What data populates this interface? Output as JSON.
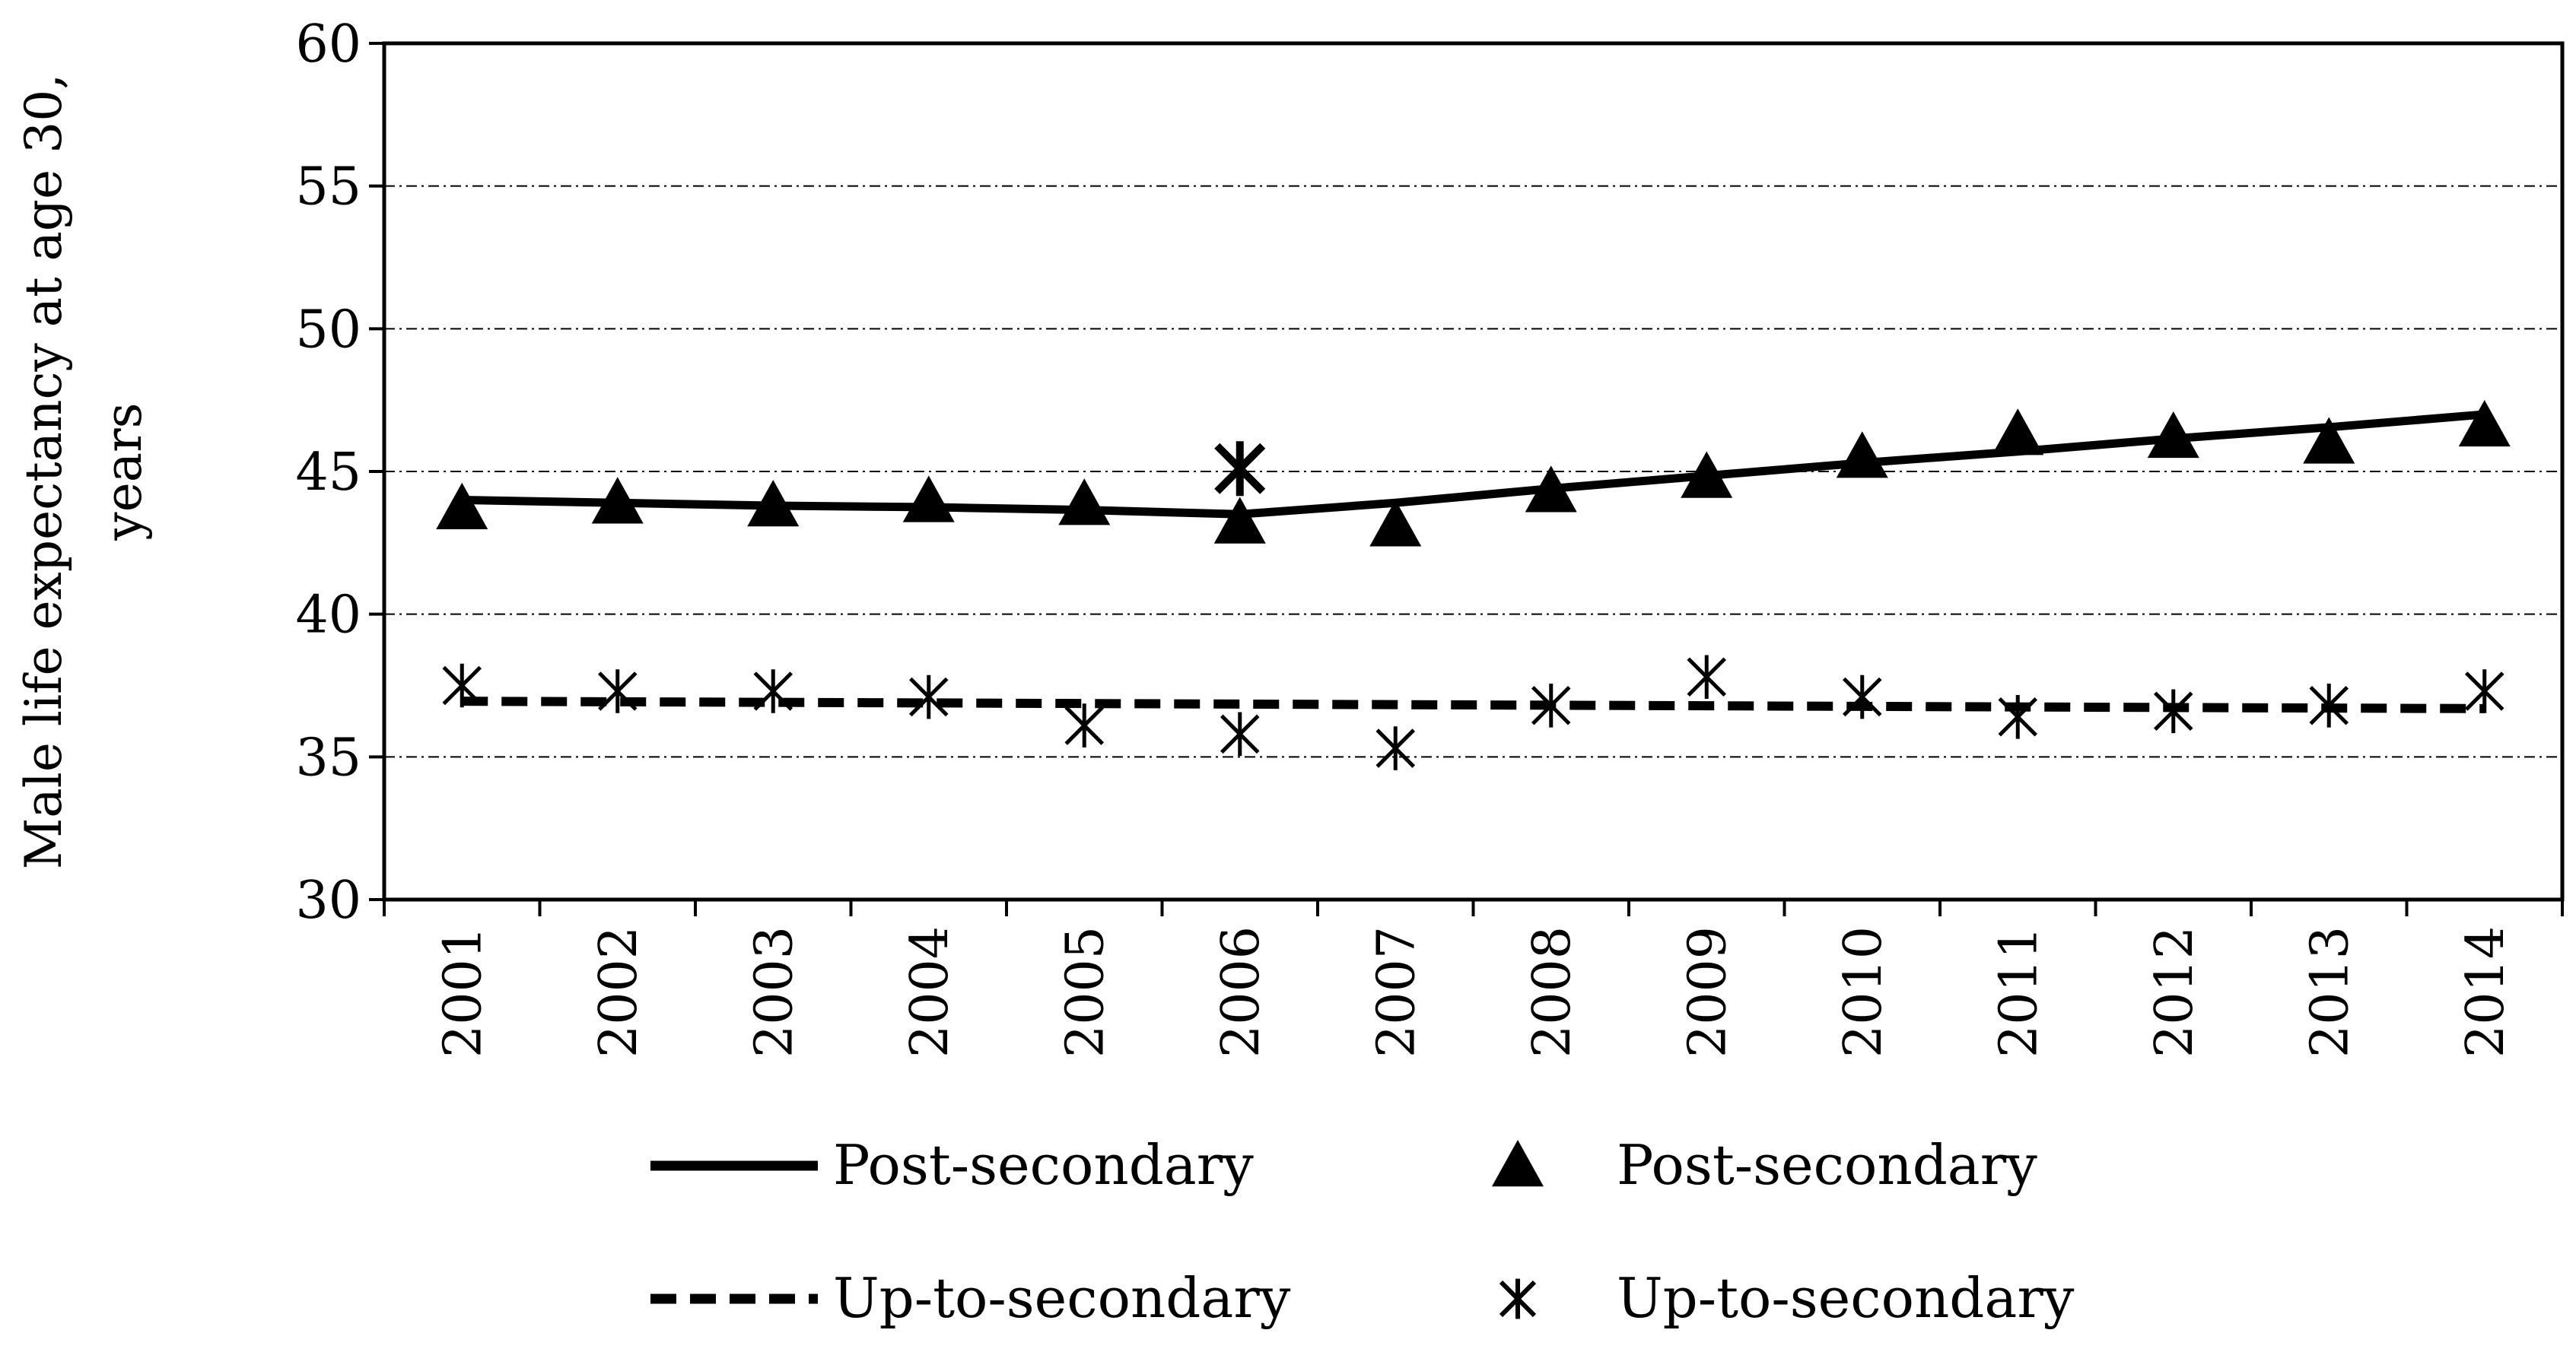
{
  "chart_data": {
    "type": "line",
    "title": "",
    "ylabel_lines": [
      "Male life expectancy at age 30,",
      "years"
    ],
    "xlabel": "",
    "ylim": [
      30,
      60
    ],
    "yticks": [
      30,
      35,
      40,
      45,
      50,
      55,
      60
    ],
    "categories": [
      "2001",
      "2002",
      "2003",
      "2004",
      "2005",
      "2006",
      "2007",
      "2008",
      "2009",
      "2010",
      "2011",
      "2012",
      "2013",
      "2014"
    ],
    "grid": "horizontal dash-dot lines",
    "legend_placement": "bottom",
    "series": [
      {
        "name": "Post-secondary",
        "kind": "trend-line",
        "style": "solid",
        "color": "#000000",
        "values": [
          44.0,
          43.9,
          43.8,
          43.75,
          43.65,
          43.5,
          43.9,
          44.4,
          44.85,
          45.3,
          45.7,
          46.15,
          46.55,
          47.0
        ]
      },
      {
        "name": "Post-secondary",
        "kind": "markers",
        "marker": "triangle",
        "color": "#000000",
        "values": [
          43.7,
          43.9,
          43.8,
          43.95,
          43.85,
          43.2,
          43.1,
          44.3,
          44.8,
          45.5,
          46.3,
          46.2,
          46.0,
          46.6
        ]
      },
      {
        "name": "Up-to-secondary",
        "kind": "trend-line",
        "style": "dashed",
        "color": "#000000",
        "values": [
          36.95,
          36.93,
          36.91,
          36.89,
          36.87,
          36.85,
          36.83,
          36.81,
          36.79,
          36.77,
          36.75,
          36.73,
          36.71,
          36.69
        ]
      },
      {
        "name": "Up-to-secondary",
        "kind": "markers",
        "marker": "asterisk",
        "color": "#000000",
        "values": [
          37.5,
          37.3,
          37.3,
          37.1,
          36.1,
          35.8,
          35.3,
          36.8,
          37.8,
          37.1,
          36.4,
          36.6,
          36.8,
          37.3
        ]
      }
    ],
    "annotations": [
      {
        "x": "2006",
        "y": 45.1,
        "marker": "asterisk"
      }
    ],
    "legend": [
      {
        "label": "Post-secondary",
        "symbol": "solid-line"
      },
      {
        "label": "Post-secondary",
        "symbol": "triangle"
      },
      {
        "label": "Up-to-secondary",
        "symbol": "dashed-line"
      },
      {
        "label": "Up-to-secondary",
        "symbol": "asterisk"
      }
    ]
  }
}
